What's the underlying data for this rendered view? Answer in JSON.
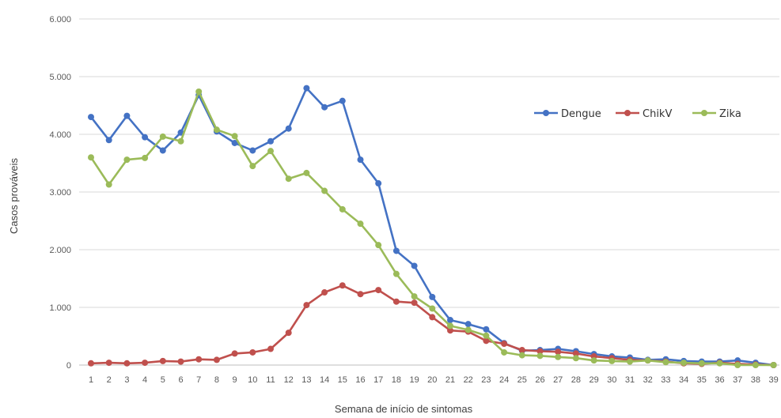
{
  "chart_data": {
    "type": "line",
    "title": "",
    "xlabel": "Semana de início de sintomas",
    "ylabel": "Casos prováveis",
    "categories": [
      "1",
      "2",
      "3",
      "4",
      "5",
      "6",
      "7",
      "8",
      "9",
      "10",
      "11",
      "12",
      "13",
      "14",
      "15",
      "16",
      "17",
      "18",
      "19",
      "20",
      "21",
      "22",
      "23",
      "24",
      "25",
      "26",
      "27",
      "28",
      "29",
      "30",
      "31",
      "32",
      "33",
      "34",
      "35",
      "36",
      "37",
      "38",
      "39"
    ],
    "y_ticks": [
      "0",
      "1.000",
      "2.000",
      "3.000",
      "4.000",
      "5.000",
      "6.000"
    ],
    "y_tick_values": [
      0,
      1000,
      2000,
      3000,
      4000,
      5000,
      6000
    ],
    "ylim": [
      0,
      6000
    ],
    "grid": true,
    "legend_position": "right",
    "series": [
      {
        "name": "Dengue",
        "color": "#4472C4",
        "values": [
          4300,
          3900,
          4320,
          3950,
          3720,
          4030,
          4680,
          4050,
          3850,
          3720,
          3880,
          4100,
          4800,
          4470,
          4580,
          3560,
          3150,
          1980,
          1720,
          1180,
          780,
          710,
          620,
          380,
          250,
          260,
          280,
          240,
          190,
          150,
          130,
          90,
          100,
          70,
          60,
          60,
          80,
          40,
          0
        ]
      },
      {
        "name": "ChikV",
        "color": "#C0504D",
        "values": [
          30,
          40,
          30,
          40,
          70,
          60,
          100,
          90,
          200,
          220,
          280,
          560,
          1040,
          1260,
          1380,
          1230,
          1300,
          1100,
          1080,
          830,
          600,
          580,
          420,
          370,
          260,
          240,
          230,
          200,
          150,
          120,
          90,
          80,
          60,
          30,
          20,
          40,
          20,
          10,
          0
        ]
      },
      {
        "name": "Zika",
        "color": "#9BBB59",
        "values": [
          3600,
          3130,
          3560,
          3590,
          3960,
          3880,
          4740,
          4080,
          3970,
          3450,
          3710,
          3230,
          3330,
          3020,
          2700,
          2450,
          2080,
          1580,
          1190,
          980,
          680,
          610,
          510,
          220,
          170,
          160,
          140,
          120,
          80,
          70,
          60,
          80,
          50,
          40,
          30,
          30,
          0,
          0,
          0
        ]
      }
    ]
  }
}
